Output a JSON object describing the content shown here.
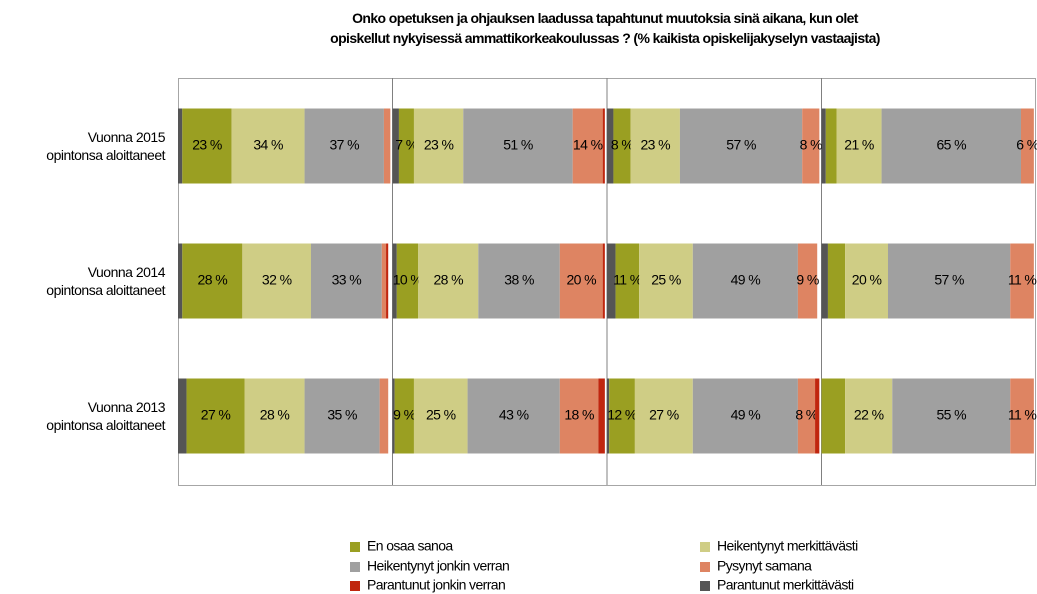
{
  "chart_data": {
    "type": "stacked_bar_panels",
    "title": "Onko opetuksen ja ohjauksen laadussa tapahtunut muutoksia sinä aikana,  kun olet\nopiskellut nykyisessä ammattikorkeakoulussas ? (% kaikista opiskelijakyselyn vastaajista)",
    "categories": [
      "Vuonna 2015\nopintonsa aloittaneet",
      "Vuonna 2014\nopintonsa aloittaneet",
      "Vuonna 2013\nopintonsa aloittaneet"
    ],
    "xlim": [
      0,
      100
    ],
    "series": [
      {
        "name": "En osaa sanoa",
        "color": "#9a9f22",
        "values": [
          [
            23,
            28,
            27
          ],
          [
            7,
            10,
            9
          ],
          [
            8,
            11,
            12
          ],
          [
            5,
            8,
            11
          ]
        ],
        "value_labels": [
          [
            "23 %",
            "28 %",
            "27 %"
          ],
          [
            "7 %",
            "10 %",
            "9 %"
          ],
          [
            "8 %",
            "11 %",
            "12 %"
          ],
          [
            null,
            null,
            null
          ]
        ]
      },
      {
        "name": "Heikentynyt merkittävästi",
        "color": "#cfcd85",
        "values": [
          [
            34,
            32,
            28
          ],
          [
            23,
            28,
            25
          ],
          [
            23,
            25,
            27
          ],
          [
            21,
            20,
            22
          ]
        ],
        "value_labels": [
          [
            "34 %",
            "32 %",
            "28 %"
          ],
          [
            "23 %",
            "28 %",
            "25 %"
          ],
          [
            "23 %",
            "25 %",
            "27 %"
          ],
          [
            "21 %",
            "20 %",
            "22 %"
          ]
        ]
      },
      {
        "name": "Heikentynyt jonkin verran",
        "color": "#a0a0a0",
        "values": [
          [
            37,
            33,
            35
          ],
          [
            51,
            38,
            43
          ],
          [
            57,
            49,
            49
          ],
          [
            65,
            57,
            55
          ]
        ],
        "value_labels": [
          [
            "37 %",
            "33 %",
            "35 %"
          ],
          [
            "51 %",
            "38 %",
            "43 %"
          ],
          [
            "57 %",
            "49 %",
            "49 %"
          ],
          [
            "65 %",
            "57 %",
            "55 %"
          ]
        ]
      },
      {
        "name": "Pysynyt samana",
        "color": "#de8462",
        "values": [
          [
            3,
            2,
            4
          ],
          [
            14,
            20,
            18
          ],
          [
            8,
            9,
            8
          ],
          [
            6,
            11,
            11
          ]
        ],
        "value_labels": [
          [
            null,
            null,
            null
          ],
          [
            "14 %",
            "20 %",
            "18 %"
          ],
          [
            "8 %",
            "9 %",
            "8 %"
          ],
          [
            "6 %",
            "11 %",
            "11 %"
          ]
        ]
      },
      {
        "name": "Parantunut jonkin verran",
        "color": "#c0260e",
        "values": [
          [
            0,
            1,
            0
          ],
          [
            1,
            1,
            3
          ],
          [
            0,
            0,
            2
          ],
          [
            0,
            0,
            0
          ]
        ]
      },
      {
        "name": "Parantunut merkittävästi",
        "color": "#555555",
        "values": [
          [
            2,
            2,
            4
          ],
          [
            3,
            2,
            1
          ],
          [
            3,
            4,
            1
          ],
          [
            2,
            3,
            0
          ]
        ]
      }
    ]
  }
}
